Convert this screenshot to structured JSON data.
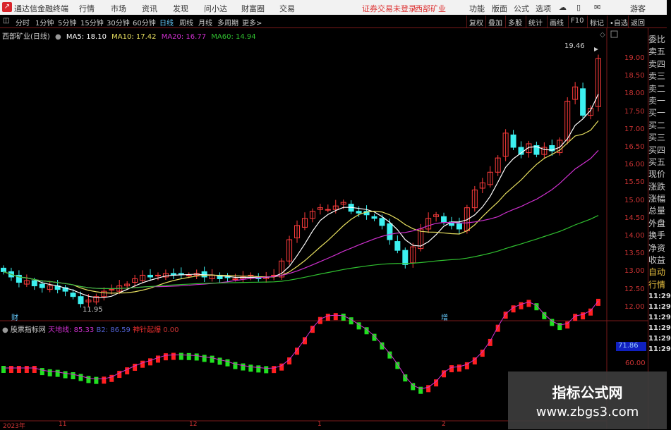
{
  "app": {
    "title": "通达信金融终端",
    "menu": [
      "行情",
      "市场",
      "资讯",
      "发现",
      "问小达",
      "财富圈",
      "交易"
    ],
    "login_status": "证券交易未登录",
    "stock_name": "西部矿业",
    "right_menu": [
      "功能",
      "版面",
      "公式",
      "选项"
    ],
    "user": "游客"
  },
  "toolbar": {
    "periods": [
      "分时",
      "1分钟",
      "5分钟",
      "15分钟",
      "30分钟",
      "60分钟",
      "日线",
      "周线",
      "月线",
      "多周期",
      "更多>"
    ],
    "active": "日线",
    "buttons": [
      "复权",
      "叠加",
      "多股",
      "统计",
      "画线",
      "F10",
      "标记",
      "•自选",
      "返回"
    ]
  },
  "legend": {
    "title": "西部矿业(日线)",
    "ma5": "MA5: 18.10",
    "ma10": "MA10: 17.42",
    "ma20": "MA20: 16.77",
    "ma60": "MA60: 14.94"
  },
  "colors": {
    "up": "#ff3c3c",
    "down": "#3cf0f0",
    "ma5": "#ffffff",
    "ma10": "#e8e060",
    "ma20": "#d030d0",
    "ma60": "#30c030"
  },
  "annotations": {
    "high": "19.46",
    "low": "11.95",
    "marker_cai": "财",
    "marker_zeng": "增"
  },
  "yaxis": [
    "19.00",
    "18.50",
    "18.00",
    "17.50",
    "17.00",
    "16.50",
    "16.00",
    "15.50",
    "15.00",
    "14.50",
    "14.00",
    "13.50",
    "13.00",
    "12.50",
    "12.00"
  ],
  "indicator": {
    "name": "股票指标网",
    "l1": "天地线: 85.33",
    "l2": "B2: 86.59",
    "l3": "神针起爆",
    "l4": "0.00",
    "current": "71.86",
    "axis": "60.00"
  },
  "dates": [
    "2023年",
    "11",
    "12",
    "1",
    "2"
  ],
  "quote_panel": [
    "委比",
    "卖五",
    "卖四",
    "卖三",
    "卖二",
    "卖一",
    "买一",
    "买二",
    "买三",
    "买四",
    "买五",
    "现价",
    "涨跌",
    "涨幅",
    "总量",
    "外盘",
    "换手",
    "净资",
    "收益",
    "自动",
    "行情"
  ],
  "ticks": [
    "11:29",
    "11:29",
    "11:29",
    "11:29",
    "11:29",
    "11:29"
  ],
  "watermark": {
    "name": "指标公式网",
    "url": "www.zbgs3.com"
  },
  "chart_data": {
    "type": "candlestick",
    "y_range": [
      12.0,
      19.0
    ],
    "closes": [
      13.0,
      12.85,
      12.7,
      12.75,
      12.6,
      12.55,
      12.6,
      12.5,
      12.45,
      12.3,
      12.1,
      12.2,
      12.3,
      12.45,
      12.5,
      12.6,
      12.65,
      12.8,
      12.9,
      12.85,
      12.9,
      12.95,
      12.9,
      12.95,
      12.9,
      12.95,
      12.85,
      12.9,
      12.8,
      12.85,
      12.8,
      12.85,
      12.9,
      12.8,
      12.85,
      12.9,
      13.3,
      13.9,
      14.3,
      14.5,
      14.7,
      14.8,
      14.75,
      14.85,
      14.95,
      14.7,
      14.65,
      14.6,
      14.5,
      14.3,
      13.9,
      13.6,
      13.2,
      13.7,
      14.2,
      14.5,
      14.6,
      14.4,
      14.3,
      14.2,
      14.8,
      15.3,
      15.5,
      15.8,
      16.2,
      16.9,
      16.5,
      16.3,
      16.6,
      16.3,
      16.5,
      16.4,
      16.7,
      17.8,
      18.2,
      17.4,
      17.6,
      19.0
    ]
  }
}
